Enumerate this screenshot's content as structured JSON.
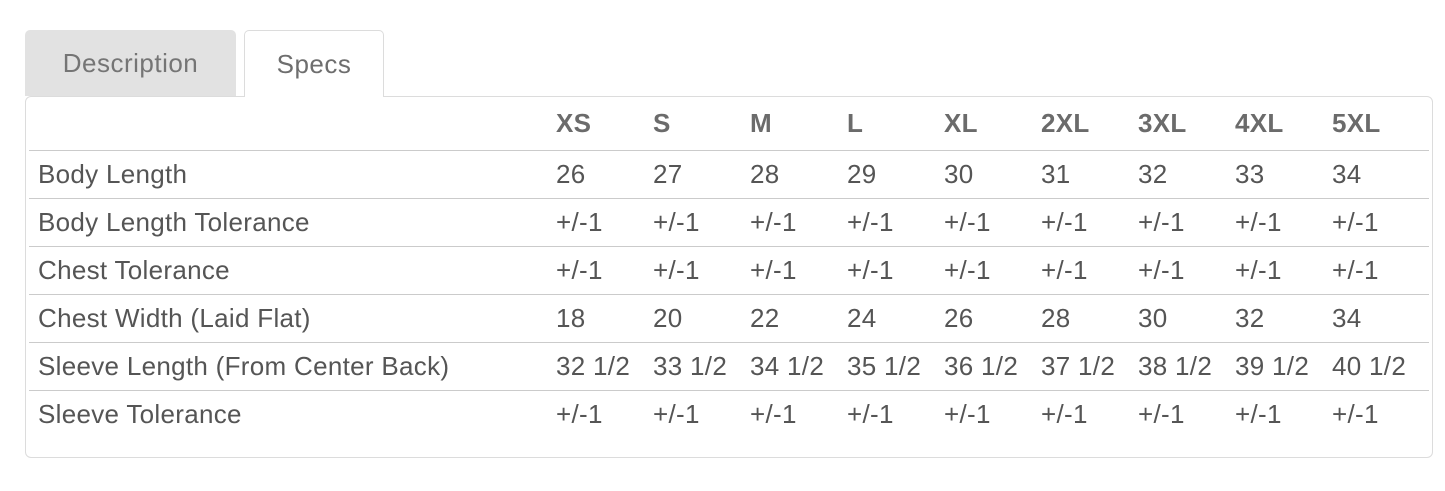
{
  "tabs": [
    {
      "label": "Description",
      "active": false
    },
    {
      "label": "Specs",
      "active": true
    }
  ],
  "specs_table": {
    "columns": [
      "XS",
      "S",
      "M",
      "L",
      "XL",
      "2XL",
      "3XL",
      "4XL",
      "5XL"
    ],
    "rows": [
      {
        "label": "Body Length",
        "values": [
          "26",
          "27",
          "28",
          "29",
          "30",
          "31",
          "32",
          "33",
          "34"
        ]
      },
      {
        "label": "Body Length Tolerance",
        "values": [
          "+/-1",
          "+/-1",
          "+/-1",
          "+/-1",
          "+/-1",
          "+/-1",
          "+/-1",
          "+/-1",
          "+/-1"
        ]
      },
      {
        "label": "Chest Tolerance",
        "values": [
          "+/-1",
          "+/-1",
          "+/-1",
          "+/-1",
          "+/-1",
          "+/-1",
          "+/-1",
          "+/-1",
          "+/-1"
        ]
      },
      {
        "label": "Chest Width (Laid Flat)",
        "values": [
          "18",
          "20",
          "22",
          "24",
          "26",
          "28",
          "30",
          "32",
          "34"
        ]
      },
      {
        "label": "Sleeve Length (From Center Back)",
        "values": [
          "32 1/2",
          "33 1/2",
          "34 1/2",
          "35 1/2",
          "36 1/2",
          "37 1/2",
          "38 1/2",
          "39 1/2",
          "40 1/2"
        ]
      },
      {
        "label": "Sleeve Tolerance",
        "values": [
          "+/-1",
          "+/-1",
          "+/-1",
          "+/-1",
          "+/-1",
          "+/-1",
          "+/-1",
          "+/-1",
          "+/-1"
        ]
      }
    ]
  },
  "colors": {
    "tab_inactive_bg": "#e2e2e2",
    "tab_text": "#757575",
    "container_border": "#dcdcdc",
    "row_divider": "#cbcbcb",
    "cell_text": "#555555",
    "header_text": "#6b6b6b"
  }
}
